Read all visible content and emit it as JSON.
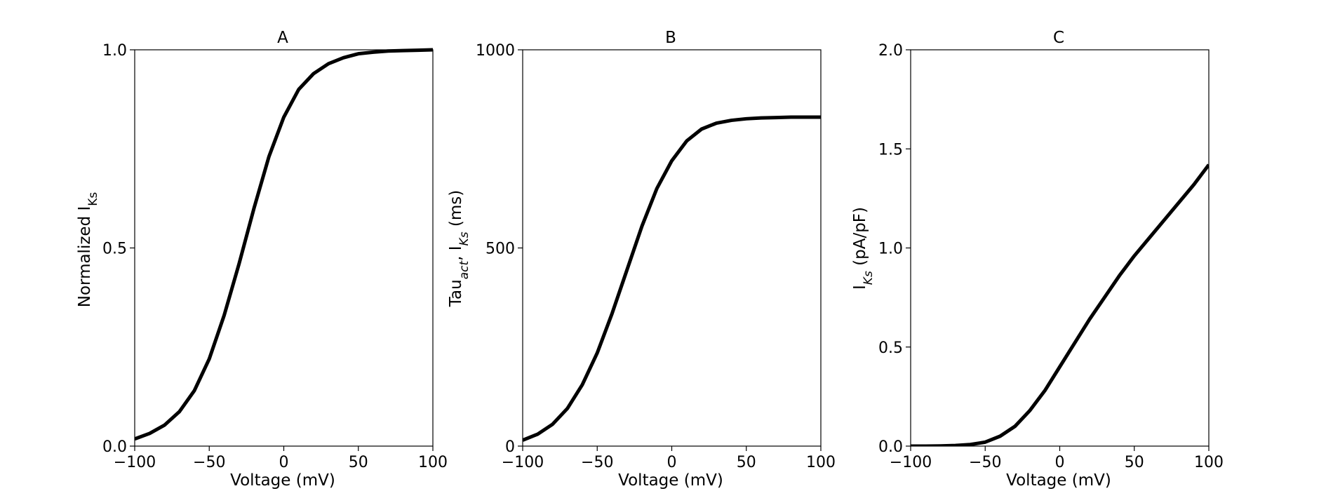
{
  "chart_data": [
    {
      "type": "line",
      "title": "A",
      "xlabel": "Voltage (mV)",
      "ylabel": {
        "main": "Normalized I",
        "sub": "Ks"
      },
      "xlim": [
        -100,
        100
      ],
      "ylim": [
        0,
        1
      ],
      "xticks": [
        -100,
        -50,
        0,
        50,
        100
      ],
      "xtick_labels": [
        "−100",
        "−50",
        "0",
        "50",
        "100"
      ],
      "yticks": [
        0,
        0.5,
        1.0
      ],
      "ytick_labels": [
        "0.0",
        "0.5",
        "1.0"
      ],
      "grid": false,
      "line_color": "#000000",
      "series": [
        {
          "x": [
            -100,
            -90,
            -80,
            -70,
            -60,
            -50,
            -40,
            -30,
            -20,
            -10,
            0,
            10,
            20,
            30,
            40,
            50,
            60,
            70,
            80,
            90,
            100
          ],
          "values": [
            0.018,
            0.032,
            0.053,
            0.087,
            0.14,
            0.22,
            0.33,
            0.46,
            0.6,
            0.73,
            0.83,
            0.9,
            0.94,
            0.965,
            0.98,
            0.99,
            0.994,
            0.997,
            0.998,
            0.999,
            1.0
          ]
        }
      ]
    },
    {
      "type": "line",
      "title": "B",
      "xlabel": "Voltage (mV)",
      "ylabel": {
        "pre": "Tau",
        "sub1": "act",
        "mid": ", I",
        "sub2": "Ks",
        "post": " (ms)"
      },
      "xlim": [
        -100,
        100
      ],
      "ylim": [
        0,
        1000
      ],
      "xticks": [
        -100,
        -50,
        0,
        50,
        100
      ],
      "xtick_labels": [
        "−100",
        "−50",
        "0",
        "50",
        "100"
      ],
      "yticks": [
        0,
        500,
        1000
      ],
      "ytick_labels": [
        "0",
        "500",
        "1000"
      ],
      "grid": false,
      "line_color": "#000000",
      "series": [
        {
          "x": [
            -100,
            -90,
            -80,
            -70,
            -60,
            -50,
            -40,
            -30,
            -20,
            -10,
            0,
            10,
            20,
            30,
            40,
            50,
            60,
            70,
            80,
            90,
            100
          ],
          "values": [
            15,
            30,
            55,
            95,
            155,
            235,
            335,
            445,
            555,
            650,
            720,
            770,
            800,
            815,
            822,
            826,
            828,
            829,
            830,
            830,
            830
          ]
        }
      ]
    },
    {
      "type": "line",
      "title": "C",
      "xlabel": "Voltage (mV)",
      "ylabel": {
        "pre": "I",
        "sub": "Ks",
        "post": " (pA/pF)"
      },
      "xlim": [
        -100,
        100
      ],
      "ylim": [
        0,
        2
      ],
      "xticks": [
        -100,
        -50,
        0,
        50,
        100
      ],
      "xtick_labels": [
        "−100",
        "−50",
        "0",
        "50",
        "100"
      ],
      "yticks": [
        0,
        0.5,
        1.0,
        1.5,
        2.0
      ],
      "ytick_labels": [
        "0.0",
        "0.5",
        "1.0",
        "1.5",
        "2.0"
      ],
      "grid": false,
      "line_color": "#000000",
      "series": [
        {
          "x": [
            -100,
            -90,
            -80,
            -70,
            -60,
            -50,
            -40,
            -30,
            -20,
            -10,
            0,
            10,
            20,
            30,
            40,
            50,
            60,
            70,
            80,
            90,
            100
          ],
          "values": [
            0.0,
            0.0,
            0.001,
            0.003,
            0.008,
            0.02,
            0.05,
            0.1,
            0.18,
            0.28,
            0.4,
            0.52,
            0.64,
            0.75,
            0.86,
            0.96,
            1.05,
            1.14,
            1.23,
            1.32,
            1.42
          ]
        }
      ]
    }
  ]
}
